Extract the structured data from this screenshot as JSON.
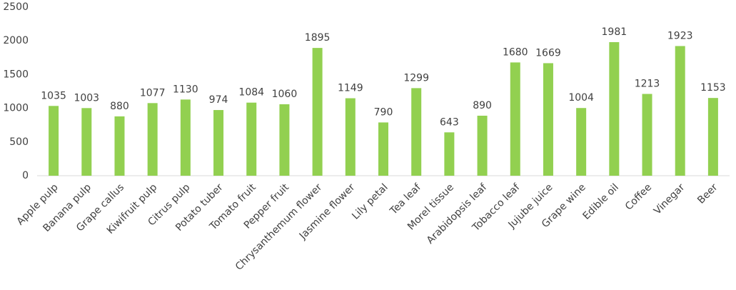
{
  "chart_data": {
    "type": "bar",
    "categories": [
      "Apple pulp",
      "Banana pulp",
      "Grape callus",
      "Kiwifruit pulp",
      "Citrus pulp",
      "Potato tuber",
      "Tomato fruit",
      "Pepper fruit",
      "Chrysanthemum flower",
      "Jasmine flower",
      "Lily petal",
      "Tea leaf",
      "Morel tissue",
      "Arabidopsis leaf",
      "Tobacco leaf",
      "Jujube juice",
      "Grape wine",
      "Edible oil",
      "Coffee",
      "Vinegar",
      "Beer"
    ],
    "values": [
      1035,
      1003,
      880,
      1077,
      1130,
      974,
      1084,
      1060,
      1895,
      1149,
      790,
      1299,
      643,
      890,
      1680,
      1669,
      1004,
      1981,
      1213,
      1923,
      1153
    ],
    "color": "#92d050",
    "ylim": [
      0,
      2500
    ],
    "yticks": [
      0,
      500,
      1000,
      1500,
      2000,
      2500
    ],
    "grid": false,
    "data_labels": true
  }
}
